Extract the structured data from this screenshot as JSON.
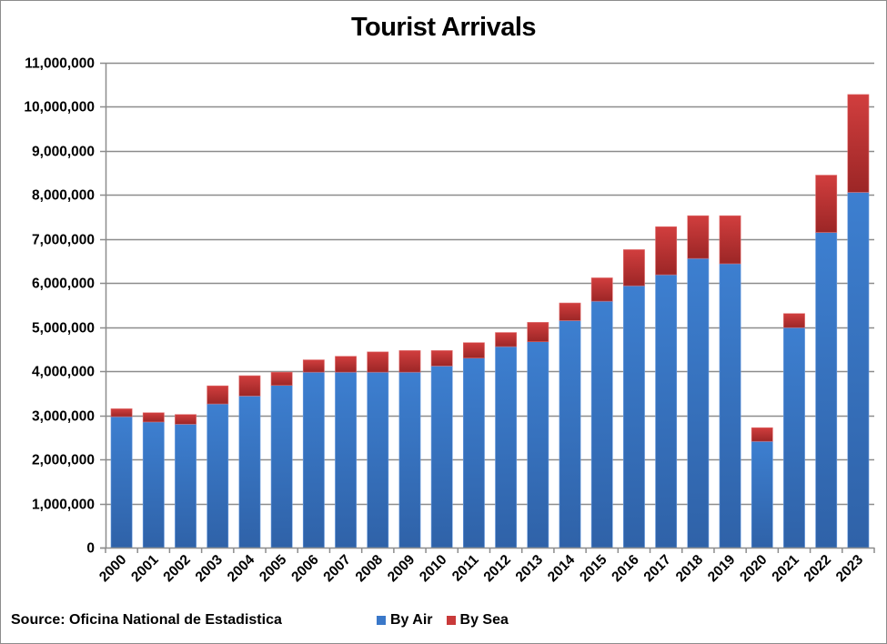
{
  "chart_data": {
    "type": "bar",
    "stacked": true,
    "title": "Tourist Arrivals",
    "xlabel": "",
    "ylabel": "",
    "ylim": [
      0,
      11000000
    ],
    "yticks": [
      0,
      1000000,
      2000000,
      3000000,
      4000000,
      5000000,
      6000000,
      7000000,
      8000000,
      9000000,
      10000000,
      11000000
    ],
    "ytick_labels": [
      "0",
      "1,000,000",
      "2,000,000",
      "3,000,000",
      "4,000,000",
      "5,000,000",
      "6,000,000",
      "7,000,000",
      "8,000,000",
      "9,000,000",
      "10,000,000",
      "11,000,000"
    ],
    "grid": true,
    "legend_position": "bottom",
    "categories": [
      "2000",
      "2001",
      "2002",
      "2003",
      "2004",
      "2005",
      "2006",
      "2007",
      "2008",
      "2009",
      "2010",
      "2011",
      "2012",
      "2013",
      "2014",
      "2015",
      "2016",
      "2017",
      "2018",
      "2019",
      "2020",
      "2021",
      "2022",
      "2023"
    ],
    "series": [
      {
        "name": "By Air",
        "color": "#3a78c9",
        "values": [
          2970000,
          2850000,
          2800000,
          3260000,
          3440000,
          3680000,
          3980000,
          3980000,
          3980000,
          3980000,
          4120000,
          4300000,
          4560000,
          4670000,
          5150000,
          5590000,
          5940000,
          6190000,
          6560000,
          6440000,
          2410000,
          4990000,
          7150000,
          8060000
        ]
      },
      {
        "name": "By Sea",
        "color": "#c93a3a",
        "values": [
          180000,
          210000,
          220000,
          410000,
          460000,
          300000,
          280000,
          360000,
          460000,
          490000,
          350000,
          350000,
          320000,
          440000,
          400000,
          530000,
          820000,
          1090000,
          970000,
          1090000,
          310000,
          320000,
          1300000,
          2220000
        ]
      }
    ],
    "source": "Source: Oficina National de Estadistica"
  },
  "title": "Tourist Arrivals",
  "footer": {
    "source": "Source: Oficina National de Estadistica"
  },
  "legend": {
    "items": [
      {
        "label": "By Air",
        "color": "#3a78c9"
      },
      {
        "label": "By Sea",
        "color": "#c93a3a"
      }
    ]
  }
}
